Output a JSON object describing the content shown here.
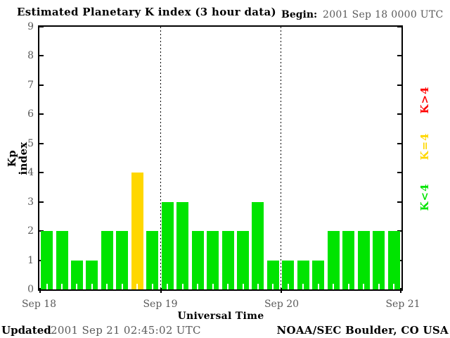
{
  "title": "Estimated Planetary K index (3 hour data)",
  "begin": {
    "label": "Begin:",
    "value": "2001 Sep 18 0000 UTC"
  },
  "footer": {
    "updated_label": "Updated",
    "updated_value": "2001 Sep 21 02:45:02 UTC",
    "credit": "NOAA/SEC Boulder, CO USA"
  },
  "colors": {
    "green_low": "#00e400",
    "yellow_mid": "#ffd700",
    "red_high": "#ff0000",
    "axis_black": "#000000",
    "soft_text": "#5a5a5a"
  },
  "chart_data": {
    "type": "bar",
    "title": "Estimated Planetary K index (3 hour data)",
    "xlabel": "Universal Time",
    "ylabel": "Kp index",
    "ylim": [
      0,
      9
    ],
    "ytick_labels": [
      "0",
      "1",
      "2",
      "3",
      "4",
      "5",
      "6",
      "7",
      "8",
      "9"
    ],
    "x_day_labels": [
      "Sep 18",
      "Sep 19",
      "Sep 20",
      "Sep 21"
    ],
    "bars_per_day": 8,
    "hours_per_bar": 3,
    "grid": "dotted vertical lines at day boundaries",
    "legend_position": "right, rotated 90deg",
    "legend": [
      {
        "label": "K>4",
        "color": "#ff0000"
      },
      {
        "label": "K=4",
        "color": "#ffd700"
      },
      {
        "label": "K<4",
        "color": "#00e400"
      }
    ],
    "values": [
      2,
      2,
      1,
      1,
      2,
      2,
      4,
      2,
      3,
      3,
      2,
      2,
      2,
      2,
      3,
      1,
      1,
      1,
      1,
      2,
      2,
      2,
      2,
      2
    ],
    "color_rule": "value<4 green, value=4 yellow, value>4 red"
  }
}
